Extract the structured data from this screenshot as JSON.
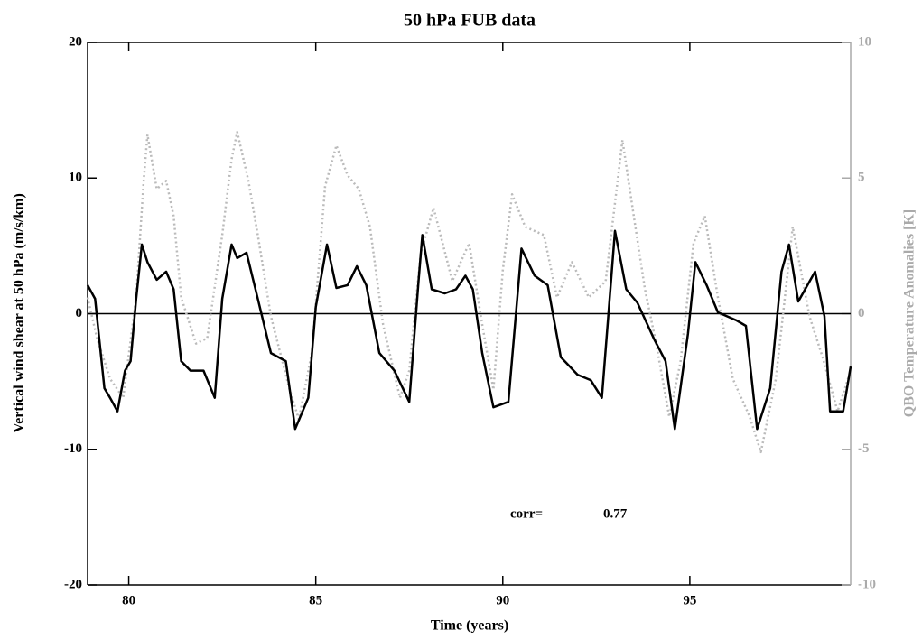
{
  "chart_data": {
    "type": "line",
    "title": "50 hPa FUB data",
    "xlabel": "Time (years)",
    "ylabel": "Vertical wind shear at 50 hPa (m/s/km)",
    "y2label": "QBO Temperature Anomalies [K]",
    "xlim": [
      78.9,
      99.3
    ],
    "xticks": [
      80,
      85,
      90,
      95
    ],
    "ylim": [
      -20,
      20
    ],
    "yticks": [
      -20,
      -10,
      0,
      10,
      20
    ],
    "y2lim": [
      -10,
      10
    ],
    "y2ticks": [
      -10,
      -5,
      0,
      5,
      10
    ],
    "reference_line": 0,
    "annotations": [
      "corr=",
      "0.77"
    ],
    "series": [
      {
        "name": "Vertical wind shear",
        "color": "#000000",
        "axis": "y",
        "x": [
          78.9,
          79.1,
          79.35,
          79.5,
          79.7,
          79.9,
          80.05,
          80.2,
          80.35,
          80.5,
          80.75,
          81.0,
          81.2,
          81.4,
          81.65,
          82.0,
          82.3,
          82.5,
          82.75,
          82.9,
          83.15,
          83.45,
          83.8,
          84.2,
          84.45,
          84.8,
          85.0,
          85.3,
          85.55,
          85.85,
          86.1,
          86.35,
          86.7,
          87.1,
          87.5,
          87.75,
          87.85,
          88.1,
          88.45,
          88.75,
          89.0,
          89.2,
          89.45,
          89.75,
          90.15,
          90.5,
          90.85,
          91.2,
          91.55,
          92.0,
          92.35,
          92.65,
          93.0,
          93.3,
          93.6,
          94.05,
          94.35,
          94.6,
          94.95,
          95.15,
          95.45,
          95.75,
          96.25,
          96.5,
          96.8,
          97.15,
          97.45,
          97.65,
          97.9,
          98.35,
          98.6,
          98.75,
          99.1,
          99.3
        ],
        "values": [
          2.1,
          1.1,
          -5.5,
          -6.2,
          -7.2,
          -4.2,
          -3.5,
          1.1,
          5.1,
          3.8,
          2.5,
          3.1,
          1.8,
          -3.5,
          -4.2,
          -4.2,
          -6.2,
          1.1,
          5.1,
          4.1,
          4.5,
          1.1,
          -2.9,
          -3.5,
          -8.5,
          -6.2,
          0.5,
          5.1,
          1.9,
          2.1,
          3.5,
          2.1,
          -2.9,
          -4.2,
          -6.5,
          2.5,
          5.8,
          1.8,
          1.5,
          1.8,
          2.8,
          1.8,
          -2.9,
          -6.9,
          -6.5,
          4.8,
          2.8,
          2.1,
          -3.2,
          -4.5,
          -4.9,
          -6.2,
          6.1,
          1.8,
          0.8,
          -1.9,
          -3.5,
          -8.5,
          -1.5,
          3.8,
          2.1,
          0.1,
          -0.5,
          -0.9,
          -8.5,
          -5.5,
          3.1,
          5.1,
          0.9,
          3.1,
          -0.2,
          -7.2,
          -7.2,
          -3.9
        ]
      },
      {
        "name": "QBO Temperature Anomalies",
        "color": "#bbbbbb",
        "axis": "y2",
        "x": [
          78.9,
          79.15,
          79.5,
          79.85,
          80.2,
          80.4,
          80.5,
          80.75,
          81.0,
          81.2,
          81.4,
          81.8,
          82.1,
          82.5,
          82.75,
          82.9,
          83.2,
          83.45,
          83.8,
          84.3,
          84.55,
          84.9,
          85.25,
          85.55,
          85.85,
          86.15,
          86.45,
          86.8,
          87.25,
          87.5,
          87.8,
          88.15,
          88.65,
          89.1,
          89.45,
          89.75,
          90.0,
          90.25,
          90.6,
          91.1,
          91.45,
          91.85,
          92.3,
          92.75,
          93.2,
          93.5,
          93.8,
          94.1,
          94.45,
          94.75,
          95.1,
          95.4,
          95.75,
          96.15,
          96.6,
          96.9,
          97.3,
          97.75,
          98.2,
          98.55,
          98.95,
          99.3
        ],
        "values": [
          0.6,
          -0.9,
          -2.4,
          -3.1,
          0.6,
          4.9,
          6.6,
          4.6,
          4.9,
          3.6,
          0.6,
          -1.1,
          -0.9,
          2.9,
          5.7,
          6.7,
          4.9,
          2.9,
          -0.1,
          -2.8,
          -3.9,
          -1.4,
          4.7,
          6.2,
          5.1,
          4.6,
          3.2,
          -0.4,
          -3.1,
          -2.1,
          2.2,
          3.9,
          1.2,
          2.6,
          -0.4,
          -2.8,
          1.6,
          4.4,
          3.2,
          2.9,
          0.6,
          1.9,
          0.6,
          1.2,
          6.4,
          3.6,
          0.9,
          -1.1,
          -3.8,
          -1.8,
          2.6,
          3.6,
          0.6,
          -2.4,
          -3.8,
          -5.1,
          -2.4,
          3.2,
          -0.1,
          -1.6,
          -3.6,
          -2.1
        ]
      }
    ]
  }
}
